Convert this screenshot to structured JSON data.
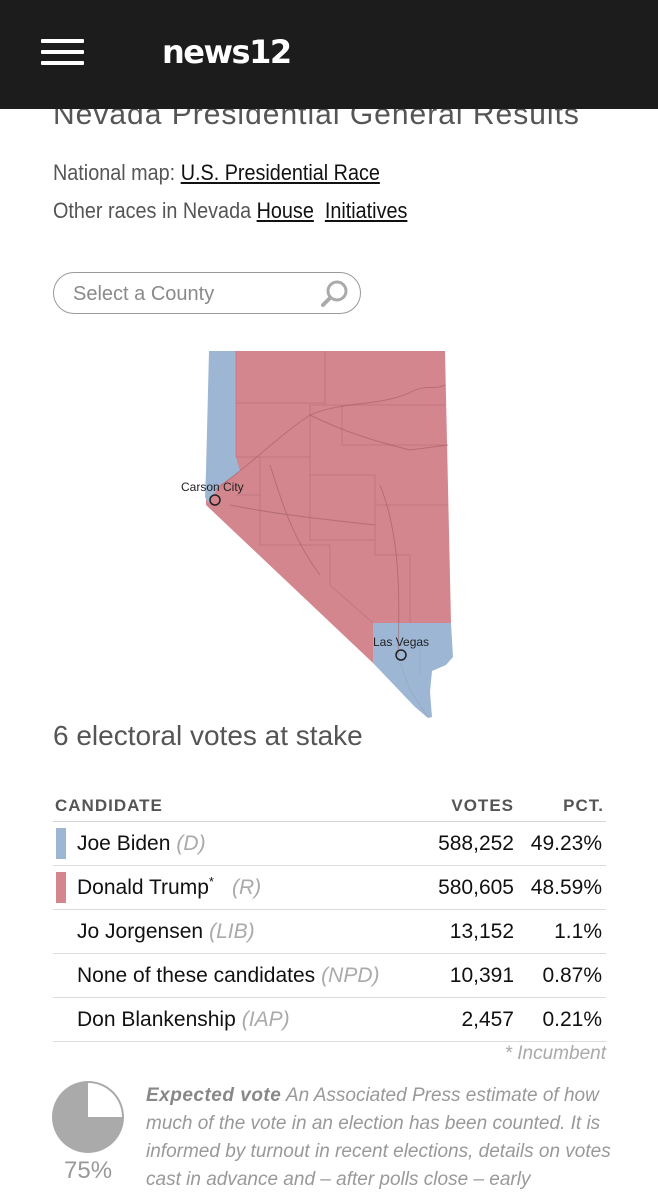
{
  "header": {
    "logo": "news12",
    "menu_icon": "hamburger-menu-icon"
  },
  "page": {
    "title": "Nevada Presidential General Results",
    "national_label": "National map:",
    "national_link": "U.S. Presidential Race",
    "other_label": "Other races in Nevada",
    "other_links": [
      "House",
      "Initiatives"
    ]
  },
  "search": {
    "placeholder": "Select a County",
    "icon": "search-icon"
  },
  "map": {
    "cities": [
      "Carson City",
      "Las Vegas"
    ],
    "colors": {
      "democrat": "#9cb6d4",
      "republican": "#d4868f"
    }
  },
  "stake": "6 electoral votes at stake",
  "table": {
    "headers": {
      "candidate": "CANDIDATE",
      "votes": "VOTES",
      "pct": "PCT."
    },
    "rows": [
      {
        "name": "Joe Biden",
        "party": "(D)",
        "incumbent": "",
        "votes": "588,252",
        "pct": "49.23%",
        "color": "#9cb6d4"
      },
      {
        "name": "Donald Trump",
        "party": "(R)",
        "incumbent": "*",
        "votes": "580,605",
        "pct": "48.59%",
        "color": "#d4868f"
      },
      {
        "name": "Jo Jorgensen",
        "party": "(LIB)",
        "incumbent": "",
        "votes": "13,152",
        "pct": "1.1%",
        "color": ""
      },
      {
        "name": "None of these candidates",
        "party": "(NPD)",
        "incumbent": "",
        "votes": "10,391",
        "pct": "0.87%",
        "color": ""
      },
      {
        "name": "Don Blankenship",
        "party": "(IAP)",
        "incumbent": "",
        "votes": "2,457",
        "pct": "0.21%",
        "color": ""
      }
    ],
    "incumbent_note": "* Incumbent"
  },
  "expected": {
    "percent_label": "75%",
    "fraction": 0.75,
    "title": "Expected vote",
    "text": "An Associated Press estimate of how much of the vote in an election has been counted. It is informed by turnout in recent elections, details on votes cast in advance and – after polls close – early"
  }
}
